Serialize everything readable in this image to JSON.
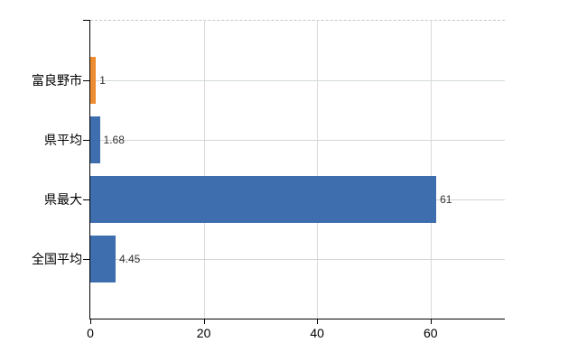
{
  "chart_data": {
    "type": "bar",
    "orientation": "horizontal",
    "title": "",
    "categories": [
      "富良野市",
      "県平均",
      "県最大",
      "全国平均"
    ],
    "values": [
      1,
      1.68,
      61,
      4.45
    ],
    "value_labels": [
      "1",
      "1.68",
      "61",
      "4.45"
    ],
    "bar_colors": [
      "#ee8c31",
      "#3e6eae",
      "#3e6eae",
      "#3e6eae"
    ],
    "x_ticks": [
      0,
      20,
      40,
      60
    ],
    "x_tick_labels": [
      "0",
      "20",
      "40",
      "60"
    ],
    "xlim": [
      0,
      73
    ],
    "grid": true,
    "legend": false
  },
  "colors": {
    "bar_orange": "#ee8c31",
    "bar_blue": "#3e6eae",
    "axis": "#000000",
    "horizontal_gridline": "#cfd8cf",
    "vertical_gridline": "#dadada",
    "top_border": "#c6c6c6",
    "value_label_text": "#333333",
    "axis_label_text": "#000000"
  }
}
